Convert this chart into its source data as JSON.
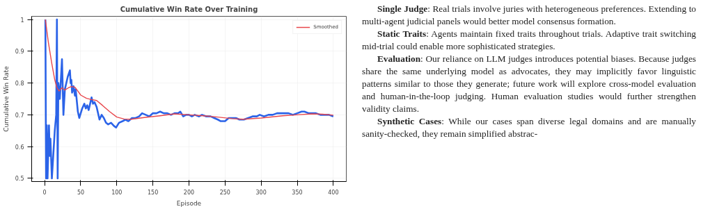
{
  "chart_data": {
    "type": "line",
    "title": "Cumulative Win Rate Over Training",
    "xlabel": "Episode",
    "ylabel": "Cumulative Win Rate",
    "xlim": [
      -18,
      418
    ],
    "ylim": [
      0.49,
      1.01
    ],
    "xticks": [
      0,
      50,
      100,
      150,
      200,
      250,
      300,
      350,
      400
    ],
    "yticks": [
      0.5,
      0.6,
      0.7,
      0.8,
      0.9,
      1.0
    ],
    "grid": true,
    "legend": "top right",
    "series": [
      {
        "color": "#2b63e8",
        "x": [
          1,
          2,
          3,
          4,
          6,
          7,
          8,
          10,
          14,
          16,
          17,
          18,
          19,
          21,
          24,
          26,
          28,
          32,
          35,
          36,
          37,
          38,
          40,
          42,
          43,
          46,
          48,
          52,
          55,
          57,
          59,
          61,
          65,
          67,
          69,
          72,
          76,
          79,
          82,
          85,
          88,
          92,
          96,
          99,
          103,
          108,
          112,
          116,
          121,
          126,
          131,
          135,
          140,
          145,
          150,
          155,
          160,
          165,
          170,
          175,
          180,
          185,
          188,
          192,
          196,
          200,
          204,
          208,
          214,
          218,
          224,
          230,
          235,
          240,
          244,
          250,
          255,
          260,
          265,
          270,
          276,
          282,
          288,
          294,
          298,
          304,
          310,
          316,
          322,
          328,
          334,
          338,
          344,
          350,
          356,
          360,
          366,
          370,
          376,
          382,
          388,
          394,
          400
        ],
        "values": [
          1.0,
          0.5,
          0.667,
          0.5,
          0.667,
          0.571,
          0.625,
          0.5,
          0.65,
          0.7,
          1.0,
          0.5,
          0.8,
          0.75,
          0.875,
          0.7,
          0.78,
          0.82,
          0.84,
          0.8,
          0.81,
          0.77,
          0.79,
          0.76,
          0.78,
          0.71,
          0.69,
          0.72,
          0.735,
          0.72,
          0.73,
          0.715,
          0.755,
          0.735,
          0.74,
          0.725,
          0.685,
          0.7,
          0.69,
          0.675,
          0.67,
          0.675,
          0.665,
          0.66,
          0.675,
          0.68,
          0.685,
          0.68,
          0.69,
          0.69,
          0.695,
          0.705,
          0.7,
          0.695,
          0.705,
          0.705,
          0.71,
          0.705,
          0.705,
          0.7,
          0.705,
          0.705,
          0.71,
          0.695,
          0.7,
          0.7,
          0.695,
          0.7,
          0.695,
          0.7,
          0.695,
          0.695,
          0.69,
          0.685,
          0.68,
          0.68,
          0.69,
          0.69,
          0.69,
          0.685,
          0.685,
          0.69,
          0.695,
          0.695,
          0.7,
          0.695,
          0.7,
          0.7,
          0.705,
          0.705,
          0.705,
          0.705,
          0.7,
          0.705,
          0.71,
          0.71,
          0.705,
          0.705,
          0.705,
          0.7,
          0.7,
          0.7,
          0.695
        ]
      },
      {
        "name": "Smoothed",
        "color": "#e8474c",
        "x": [
          1,
          5,
          10,
          14,
          17,
          20,
          24,
          28,
          33,
          37,
          42,
          46,
          50,
          58,
          65,
          72,
          80,
          90,
          100,
          110,
          120,
          140,
          160,
          180,
          200,
          220,
          240,
          260,
          275,
          300,
          330,
          350,
          370,
          385,
          400
        ],
        "values": [
          1.0,
          0.93,
          0.86,
          0.81,
          0.785,
          0.775,
          0.785,
          0.778,
          0.785,
          0.789,
          0.787,
          0.775,
          0.762,
          0.752,
          0.748,
          0.745,
          0.73,
          0.71,
          0.693,
          0.687,
          0.686,
          0.692,
          0.697,
          0.703,
          0.7,
          0.697,
          0.693,
          0.688,
          0.686,
          0.69,
          0.697,
          0.7,
          0.703,
          0.702,
          0.699
        ]
      }
    ],
    "annotations": [
      "Single Judge: Real trials involve juries with heterogeneous preferences. Extending to multi-agent judicial panels would better model consensus formation.",
      "Static Traits: Agents maintain fixed traits throughout trials. Adaptive trait switching mid-trial could enable more sophisticated strategies.",
      "Evaluation: Our reliance on LLM judges introduces potential biases. Because judges share the same underlying model as advocates, they may implicitly favor linguistic patterns similar to those they generate; future work will explore cross-model evaluation and human-in-the-loop judging. Human evaluation studies would further strengthen validity claims.",
      "Synthetic Cases: While our cases span diverse legal domains and are manually sanity-checked, they remain simplified abstrac-"
    ]
  }
}
